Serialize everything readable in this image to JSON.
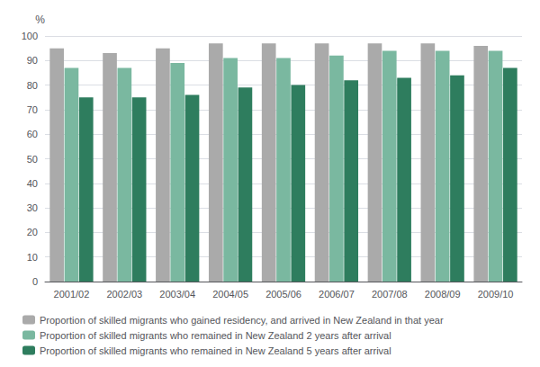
{
  "chart_data": {
    "type": "bar",
    "ylabel": "%",
    "categories": [
      "2001/02",
      "2002/03",
      "2003/04",
      "2004/05",
      "2005/06",
      "2006/07",
      "2007/08",
      "2008/09",
      "2009/10"
    ],
    "series": [
      {
        "name": "Proportion of skilled migrants who gained residency, and arrived in New Zealand in that year",
        "color": "#aaaaaa",
        "values": [
          95,
          93,
          95,
          97,
          97,
          97,
          97,
          97,
          96
        ]
      },
      {
        "name": "Proportion of skilled migrants who remained in New Zealand 2 years after arrival",
        "color": "#7ab8a0",
        "values": [
          87,
          87,
          89,
          91,
          91,
          92,
          94,
          94,
          94
        ]
      },
      {
        "name": "Proportion of skilled migrants who remained in New Zealand 5 years after arrival",
        "color": "#2e7d5e",
        "values": [
          75,
          75,
          76,
          79,
          80,
          82,
          83,
          84,
          87
        ]
      }
    ],
    "ylim": [
      0,
      100
    ],
    "yticks": [
      0,
      10,
      20,
      30,
      40,
      50,
      60,
      70,
      80,
      90,
      100
    ],
    "grid": true,
    "legend": "bottom left"
  }
}
